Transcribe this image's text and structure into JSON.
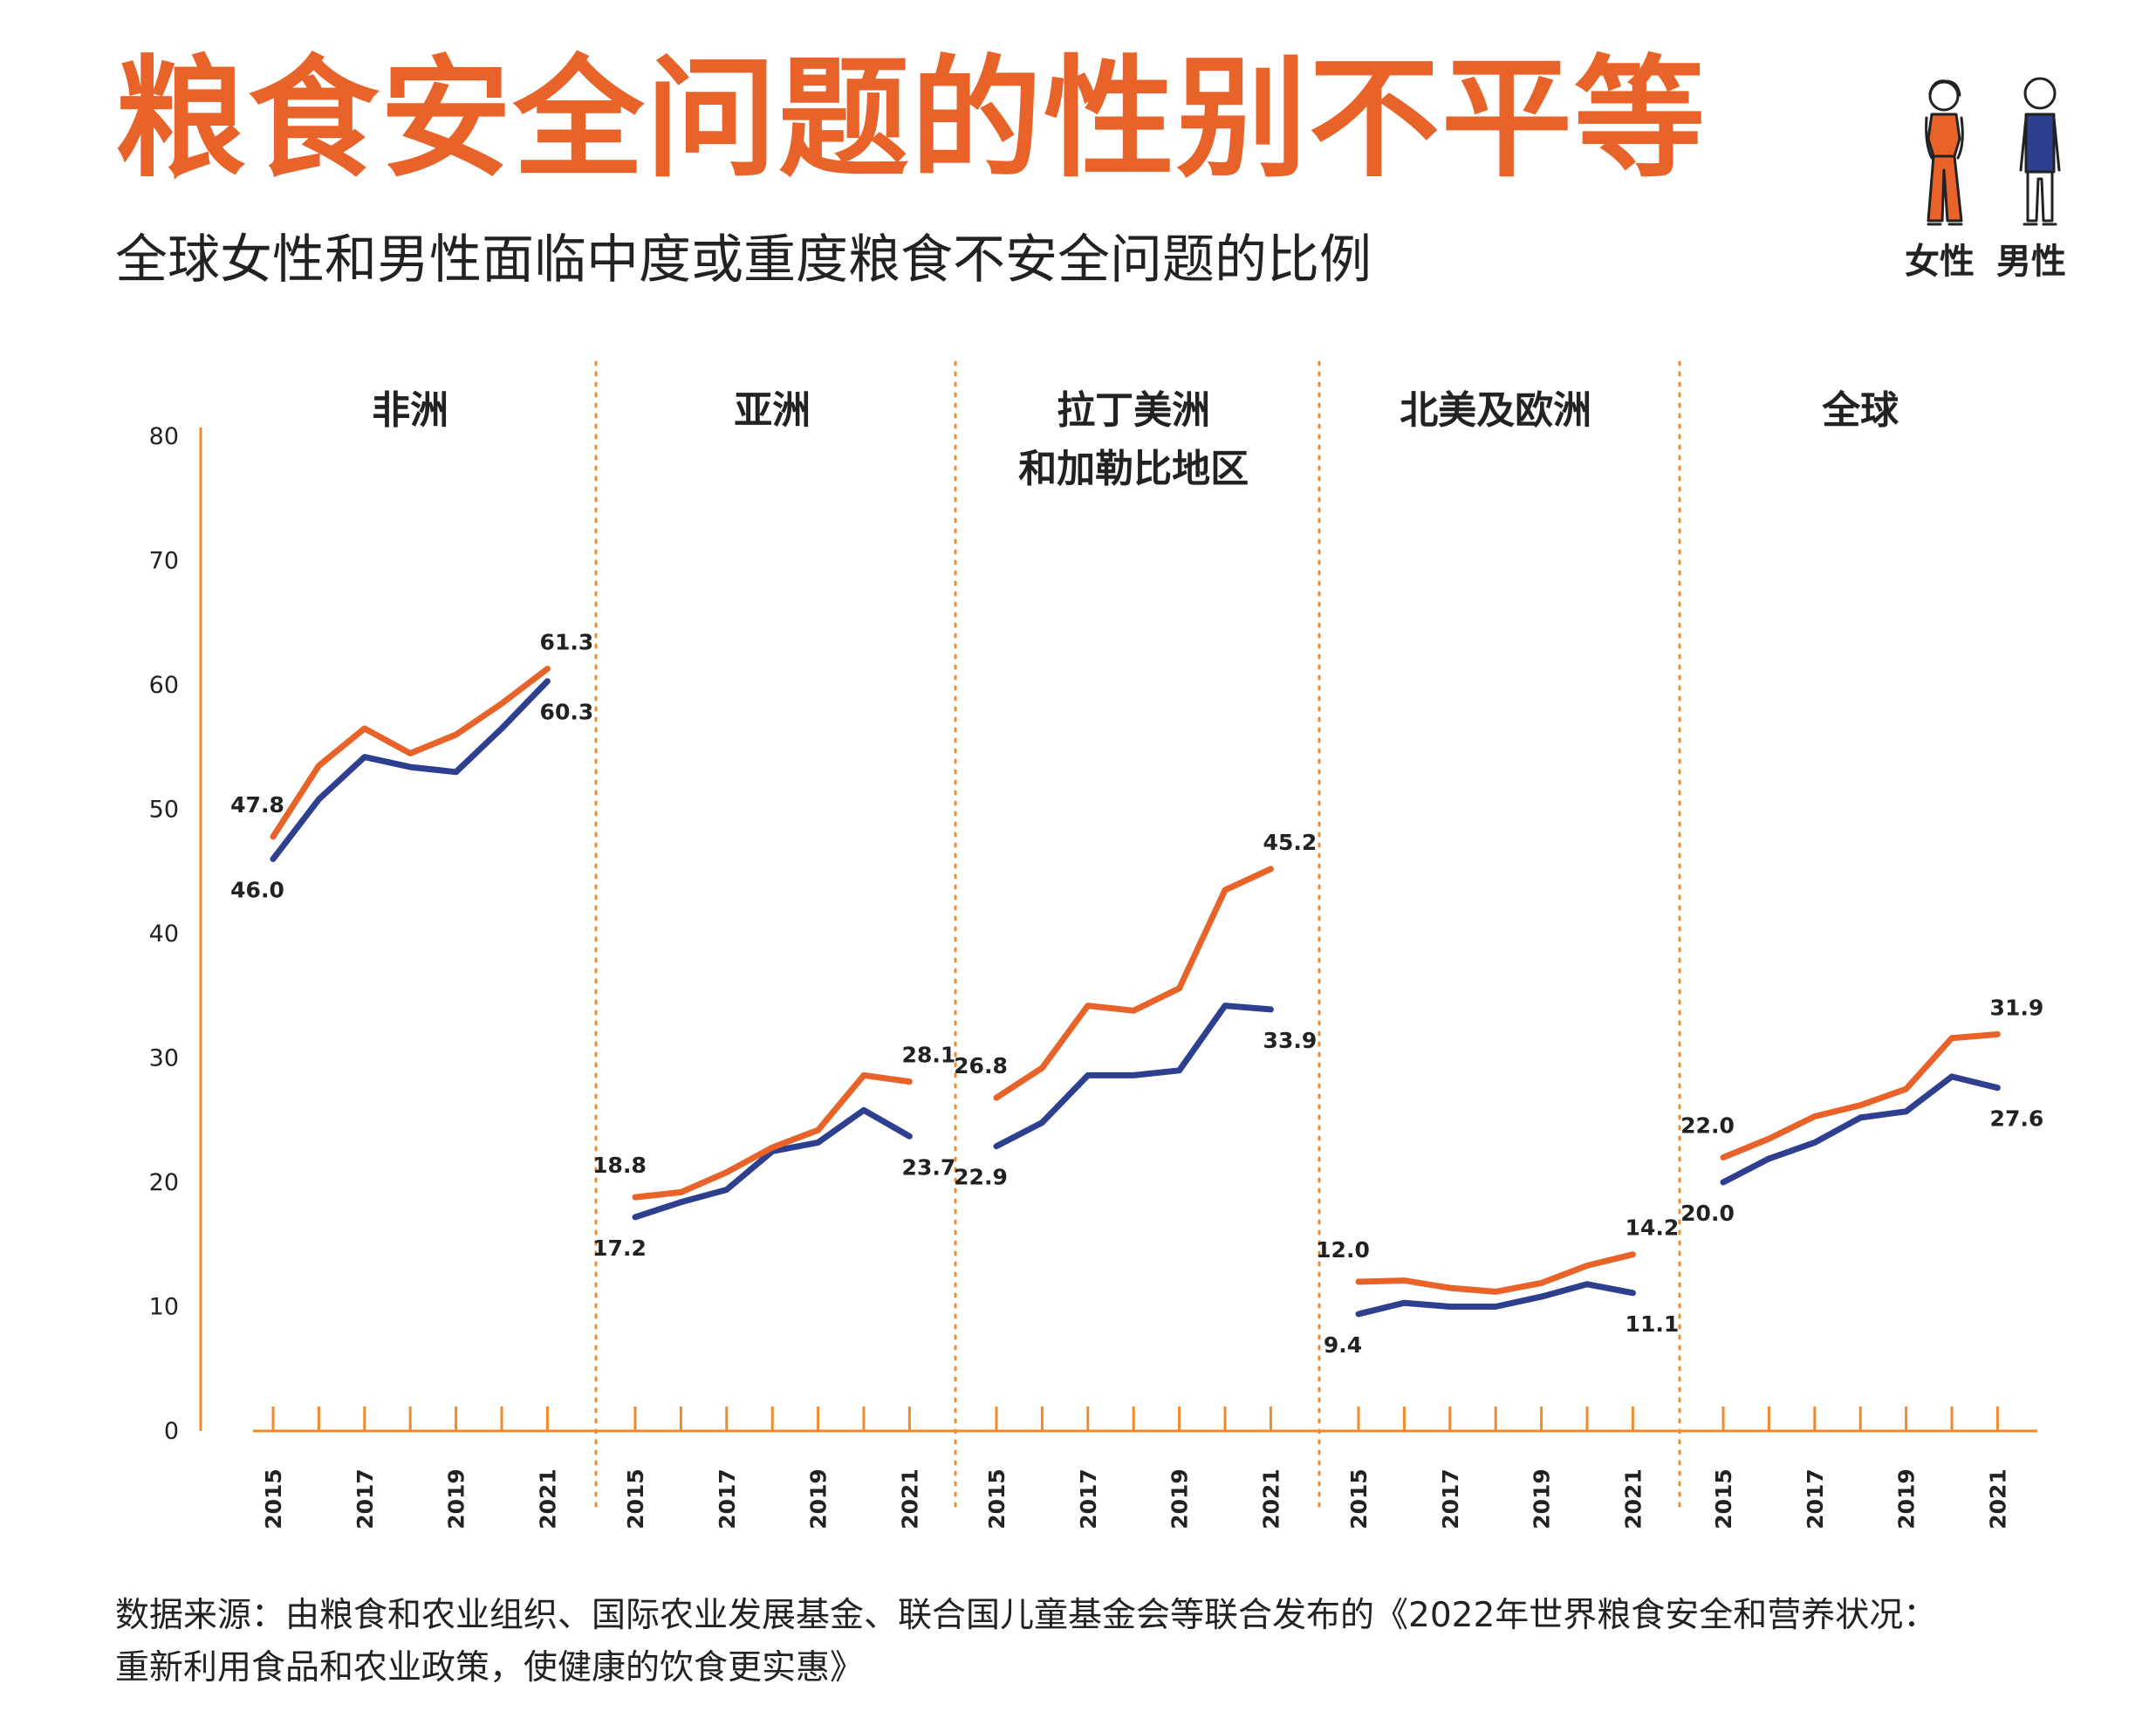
{
  "title": "粮食安全问题的性别不平等",
  "subtitle": "全球女性和男性面临中度或重度粮食不安全问题的比例",
  "legend": {
    "female": "女性",
    "male": "男性"
  },
  "source_line1": "数据来源：由粮食和农业组织、国际农业发展基金、联合国儿童基金会等联合发布的《2022年世界粮食安全和营养状况：",
  "source_line2": "重新利用食品和农业政策，使健康的饮食更实惠》",
  "colors": {
    "female": "#E8632A",
    "male": "#2E3F8F",
    "axis": "#F08A2C",
    "text": "#222222"
  },
  "chart_data": {
    "type": "line",
    "ylim": [
      0,
      80
    ],
    "yticks": [
      "0",
      "10",
      "20",
      "30",
      "40",
      "50",
      "60",
      "70",
      "80"
    ],
    "years": [
      2015,
      2016,
      2017,
      2018,
      2019,
      2020,
      2021
    ],
    "year_labels": [
      "2015",
      "2017",
      "2019",
      "2021"
    ],
    "panels": [
      {
        "name_lines": [
          "非洲"
        ],
        "female": [
          47.8,
          53.5,
          56.5,
          54.5,
          56.0,
          58.5,
          61.3
        ],
        "male": [
          46.0,
          50.8,
          54.2,
          53.4,
          53.0,
          56.5,
          60.3
        ],
        "labels": {
          "female_start": "47.8",
          "female_end": "61.3",
          "male_start": "46.0",
          "male_end": "60.3"
        }
      },
      {
        "name_lines": [
          "亚洲"
        ],
        "female": [
          18.8,
          19.2,
          20.8,
          22.8,
          24.2,
          28.6,
          28.1
        ],
        "male": [
          17.2,
          18.4,
          19.4,
          22.5,
          23.2,
          25.8,
          23.7
        ],
        "labels": {
          "female_start": "18.8",
          "female_end": "28.1",
          "male_start": "17.2",
          "male_end": "23.7"
        }
      },
      {
        "name_lines": [
          "拉丁美洲",
          "和加勒比地区"
        ],
        "female": [
          26.8,
          29.2,
          34.2,
          33.8,
          35.6,
          43.5,
          45.2
        ],
        "male": [
          22.9,
          24.8,
          28.6,
          28.6,
          29.0,
          34.2,
          33.9
        ],
        "labels": {
          "female_start": "26.8",
          "female_end": "45.2",
          "male_start": "22.9",
          "male_end": "33.9"
        }
      },
      {
        "name_lines": [
          "北美及欧洲"
        ],
        "female": [
          12.0,
          12.1,
          11.5,
          11.2,
          11.9,
          13.3,
          14.2
        ],
        "male": [
          9.4,
          10.3,
          10.0,
          10.0,
          10.8,
          11.8,
          11.1
        ],
        "labels": {
          "female_start": "12.0",
          "female_end": "14.2",
          "male_start": "9.4",
          "male_end": "11.1"
        }
      },
      {
        "name_lines": [
          "全球"
        ],
        "female": [
          22.0,
          23.5,
          25.3,
          26.2,
          27.5,
          31.6,
          31.9
        ],
        "male": [
          20.0,
          21.9,
          23.2,
          25.2,
          25.7,
          28.5,
          27.6
        ],
        "labels": {
          "female_start": "22.0",
          "female_end": "31.9",
          "male_start": "20.0",
          "male_end": "27.6"
        }
      }
    ]
  }
}
